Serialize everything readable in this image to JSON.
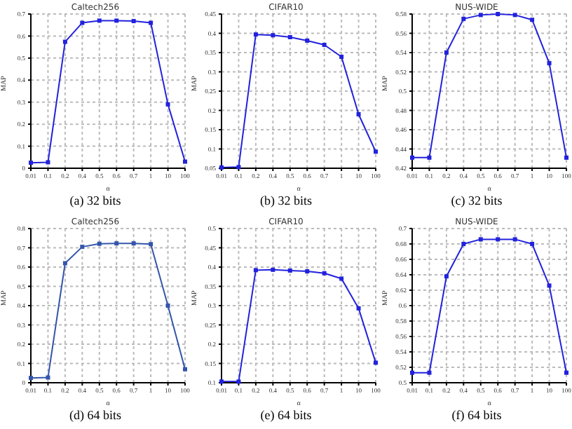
{
  "chart_data": [
    {
      "type": "line",
      "title": "Caltech256",
      "xlabel": "α",
      "ylabel": "MAP",
      "annotations": [
        "(a) 32 bits"
      ],
      "categories": [
        "0.01",
        "0.1",
        "0.2",
        "0.4",
        "0.5",
        "0.6",
        "0.7",
        "1",
        "10",
        "100"
      ],
      "series": [
        {
          "color": "#2222dd",
          "values": [
            0.025,
            0.027,
            0.574,
            0.66,
            0.67,
            0.67,
            0.668,
            0.66,
            0.29,
            0.03
          ]
        }
      ],
      "ylim": [
        0,
        0.7
      ],
      "yticks": [
        0,
        0.1,
        0.2,
        0.3,
        0.4,
        0.5,
        0.6,
        0.7
      ],
      "grid": true,
      "marker": "square",
      "line_style": "solid"
    },
    {
      "type": "line",
      "title": "CIFAR10",
      "xlabel": "α",
      "ylabel": "MAP",
      "annotations": [
        "(b) 32 bits"
      ],
      "categories": [
        "0.01",
        "0.1",
        "0.2",
        "0.4",
        "0.5",
        "0.6",
        "0.7",
        "1",
        "10",
        "100"
      ],
      "series": [
        {
          "color": "#2222dd",
          "values": [
            0.052,
            0.053,
            0.397,
            0.395,
            0.39,
            0.381,
            0.37,
            0.339,
            0.19,
            0.093
          ]
        }
      ],
      "ylim": [
        0.05,
        0.45
      ],
      "yticks": [
        0.05,
        0.1,
        0.15,
        0.2,
        0.25,
        0.3,
        0.35,
        0.4,
        0.45
      ],
      "grid": true,
      "marker": "square",
      "line_style": "solid"
    },
    {
      "type": "line",
      "title": "NUS-WIDE",
      "xlabel": "α",
      "ylabel": "MAP",
      "annotations": [
        "(c) 32 bits"
      ],
      "categories": [
        "0.01",
        "0.1",
        "0.2",
        "0.4",
        "0.5",
        "0.6",
        "0.7",
        "1",
        "10",
        "100"
      ],
      "series": [
        {
          "color": "#2222dd",
          "values": [
            0.431,
            0.431,
            0.54,
            0.575,
            0.579,
            0.58,
            0.579,
            0.574,
            0.529,
            0.431
          ]
        }
      ],
      "ylim": [
        0.42,
        0.58
      ],
      "yticks": [
        0.42,
        0.44,
        0.46,
        0.48,
        0.5,
        0.52,
        0.54,
        0.56,
        0.58
      ],
      "grid": true,
      "marker": "square",
      "line_style": "solid"
    },
    {
      "type": "line",
      "title": "Caltech256",
      "xlabel": "α",
      "ylabel": "MAP",
      "annotations": [
        "(d) 64 bits"
      ],
      "categories": [
        "0.01",
        "0.1",
        "0.2",
        "0.4",
        "0.5",
        "0.6",
        "0.7",
        "1",
        "10",
        "100"
      ],
      "series": [
        {
          "color": "#3355aa",
          "values": [
            0.025,
            0.027,
            0.62,
            0.705,
            0.721,
            0.723,
            0.723,
            0.719,
            0.4,
            0.07
          ]
        }
      ],
      "ylim": [
        0,
        0.8
      ],
      "yticks": [
        0,
        0.1,
        0.2,
        0.3,
        0.4,
        0.5,
        0.6,
        0.7,
        0.8
      ],
      "grid": true,
      "marker": "square",
      "line_style": "solid"
    },
    {
      "type": "line",
      "title": "CIFAR10",
      "xlabel": "α",
      "ylabel": "MAP",
      "annotations": [
        "(e) 64 bits"
      ],
      "categories": [
        "0.01",
        "0.1",
        "0.2",
        "0.4",
        "0.5",
        "0.6",
        "0.7",
        "1",
        "10",
        "100"
      ],
      "series": [
        {
          "color": "#2222dd",
          "values": [
            0.103,
            0.103,
            0.392,
            0.393,
            0.391,
            0.389,
            0.384,
            0.37,
            0.293,
            0.152
          ]
        }
      ],
      "ylim": [
        0.1,
        0.5
      ],
      "yticks": [
        0.1,
        0.15,
        0.2,
        0.25,
        0.3,
        0.35,
        0.4,
        0.45,
        0.5
      ],
      "grid": true,
      "marker": "square",
      "line_style": "solid"
    },
    {
      "type": "line",
      "title": "NUS-WIDE",
      "xlabel": "α",
      "ylabel": "MAP",
      "annotations": [
        "(f) 64 bits"
      ],
      "categories": [
        "0.01",
        "0.1",
        "0.2",
        "0.4",
        "0.5",
        "0.6",
        "0.7",
        "1",
        "10",
        "100"
      ],
      "series": [
        {
          "color": "#2222dd",
          "values": [
            0.513,
            0.513,
            0.638,
            0.68,
            0.686,
            0.686,
            0.686,
            0.68,
            0.626,
            0.513
          ]
        }
      ],
      "ylim": [
        0.5,
        0.7
      ],
      "yticks": [
        0.5,
        0.52,
        0.54,
        0.56,
        0.58,
        0.6,
        0.62,
        0.64,
        0.66,
        0.68,
        0.7
      ],
      "grid": true,
      "marker": "square",
      "line_style": "solid"
    }
  ]
}
